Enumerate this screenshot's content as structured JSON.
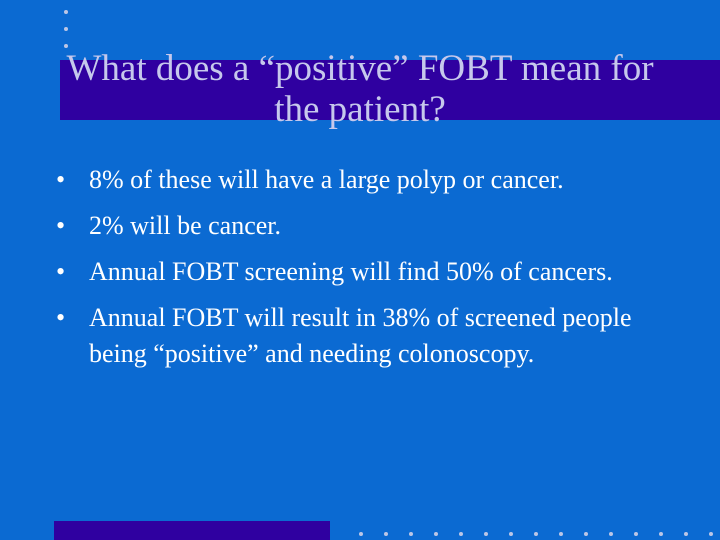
{
  "slide": {
    "title": "What does a “positive” FOBT mean for the patient?",
    "bullet_symbol": "•",
    "bullets": [
      "8% of these will have a large polyp or cancer.",
      "2% will be cancer.",
      "Annual FOBT screening will find 50% of cancers.",
      "Annual FOBT will result in 38% of screened people being “positive” and needing colonoscopy."
    ]
  },
  "colors": {
    "background": "#0b6ad2",
    "accent_bar": "#2f00a0",
    "title_text": "#c6c8ec",
    "body_text": "#ffffff",
    "dots": "#bcc6e6"
  }
}
